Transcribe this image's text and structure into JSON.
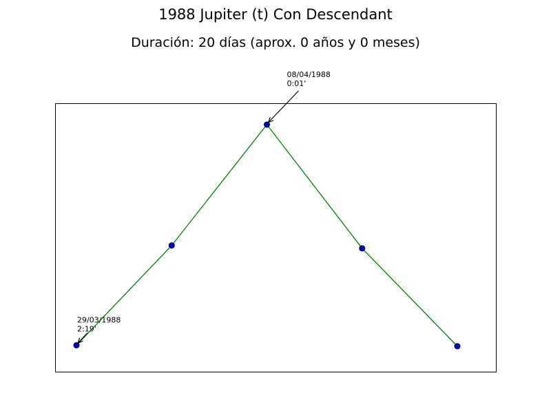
{
  "chart_data": {
    "type": "line",
    "title": "1988 Jupiter (t) Con Descendant",
    "subtitle": "Duración: 20 días (aprox. 0 años y 0 meses)",
    "xlabel": "",
    "ylabel": "",
    "grid": false,
    "axes_ticks_visible": false,
    "series": [
      {
        "x_index": [
          0,
          1,
          2,
          3,
          4
        ],
        "y_arcmin": [
          2.32,
          1.28,
          0.02,
          1.31,
          2.33
        ]
      }
    ],
    "colors": {
      "line": "#008000",
      "marker_fill": "#0000cc",
      "marker_edge": "#000033"
    },
    "annotations": [
      {
        "point_index": 0,
        "date": "29/03/1988",
        "orb": "2:19'"
      },
      {
        "point_index": 2,
        "date": "08/04/1988",
        "orb": "0:01'"
      }
    ]
  }
}
